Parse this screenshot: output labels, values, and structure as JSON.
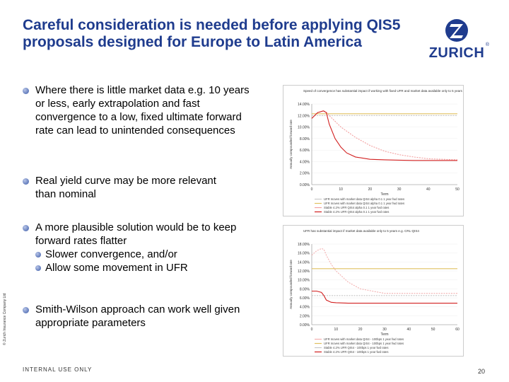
{
  "title": "Careful consideration is needed before applying QIS5 proposals designed for Europe to Latin America",
  "logo": {
    "word": "ZURICH",
    "reg": "®"
  },
  "bullets": [
    {
      "text": "Where there is little market data e.g. 10 years or less, early extrapolation and fast convergence to a low, fixed ultimate forward rate can lead to unintended consequences"
    },
    {
      "text": "Real yield curve may be more relevant than nominal"
    },
    {
      "text": "A more plausible solution would be to keep forward rates flatter",
      "subs": [
        "Slower convergence, and/or",
        "Allow some movement in UFR"
      ]
    },
    {
      "text": "Smith-Wilson approach can work well given appropriate parameters"
    }
  ],
  "side_copy": "© Zurich Insurance Company Ltd",
  "footer": "INTERNAL USE ONLY",
  "page_number": "20",
  "chart_data": [
    {
      "type": "line",
      "title": "Speed of convergence has substantial impact if working with fixed UFR and market data available only to 5 years e.g. QIS4-4(6)",
      "xlabel": "Term",
      "ylabel": "Annually compounded forward rate",
      "xlim": [
        0,
        50
      ],
      "ylim": [
        0,
        14
      ],
      "x_ticks": [
        "0",
        "10",
        "20",
        "30",
        "40",
        "50"
      ],
      "y_ticks": [
        "0.00%",
        "2.00%",
        "4.00%",
        "6.00%",
        "8.00%",
        "10.00%",
        "12.00%",
        "14.00%"
      ],
      "series": [
        {
          "name": "UFR moves with market data QIS4 alpha 0.1 1 year fwd rates",
          "color": "#c8c8c8",
          "x": [
            0,
            2,
            4,
            6,
            8,
            10,
            15,
            20,
            25,
            30,
            35,
            40,
            45,
            50
          ],
          "y": [
            12.0,
            12.0,
            12.0,
            12.0,
            12.0,
            12.0,
            12.0,
            12.0,
            12.0,
            12.0,
            12.0,
            12.0,
            12.0,
            12.0
          ]
        },
        {
          "name": "UFR moves with market data QIS4 alpha 0.1 1 year fwd rates",
          "color": "#e0c060",
          "x": [
            0,
            5,
            10,
            15,
            20,
            25,
            30,
            35,
            40,
            45,
            50
          ],
          "y": [
            12.3,
            12.3,
            12.3,
            12.3,
            12.3,
            12.3,
            12.3,
            12.3,
            12.3,
            12.3,
            12.3
          ]
        },
        {
          "name": "Stable 4.2% UFR QIS4 alpha 0.1 1 year fwd rates",
          "color": "#f3a0a0",
          "x": [
            0,
            2,
            4,
            5,
            6,
            8,
            10,
            15,
            20,
            25,
            30,
            35,
            40,
            45,
            50
          ],
          "y": [
            11.5,
            12.5,
            12.8,
            12.6,
            12.0,
            11.0,
            10.0,
            8.2,
            6.8,
            5.8,
            5.2,
            4.8,
            4.5,
            4.4,
            4.3
          ]
        },
        {
          "name": "Stable 4.2% UFR QIS4 alpha 0.1 1 year fwd rates",
          "color": "#d22020",
          "x": [
            0,
            2,
            4,
            5,
            6,
            8,
            10,
            12,
            15,
            20,
            25,
            30,
            35,
            40,
            45,
            50
          ],
          "y": [
            11.5,
            12.5,
            12.8,
            12.5,
            10.5,
            8.0,
            6.5,
            5.5,
            4.8,
            4.4,
            4.3,
            4.25,
            4.2,
            4.2,
            4.2,
            4.2
          ]
        }
      ]
    },
    {
      "type": "line",
      "title": "UFR has substantial impact if market data available only to 5 years e.g. CRL-QIS4",
      "xlabel": "Term",
      "ylabel": "Annually compounded forward rate",
      "xlim": [
        0,
        60
      ],
      "ylim": [
        0,
        18
      ],
      "x_ticks": [
        "0",
        "10",
        "20",
        "30",
        "40",
        "50",
        "60"
      ],
      "y_ticks": [
        "0.00%",
        "2.00%",
        "4.00%",
        "6.00%",
        "8.00%",
        "10.00%",
        "12.00%",
        "14.00%",
        "16.00%",
        "18.00%"
      ],
      "series": [
        {
          "name": "UFR moves with market data QIS4 - 100bps 1 year fwd rates",
          "color": "#f3b0b0",
          "x": [
            0,
            2,
            4,
            5,
            6,
            8,
            10,
            15,
            20,
            30,
            40,
            50,
            60
          ],
          "y": [
            15.5,
            16.5,
            17.0,
            16.8,
            15.5,
            13.5,
            12.0,
            9.5,
            8.0,
            7.0,
            7.0,
            7.0,
            7.0
          ]
        },
        {
          "name": "UFR moves with market data QIS4 - 100bps 1 year fwd rates",
          "color": "#e0c060",
          "x": [
            0,
            5,
            10,
            20,
            30,
            40,
            50,
            60
          ],
          "y": [
            12.5,
            12.5,
            12.5,
            12.5,
            12.5,
            12.5,
            12.5,
            12.5
          ]
        },
        {
          "name": "Stable 4.2% UFR QIS4 - 100bps 1 year fwd rates",
          "color": "#c8c8c8",
          "x": [
            0,
            5,
            10,
            20,
            30,
            40,
            50,
            60
          ],
          "y": [
            6.5,
            6.5,
            6.5,
            6.5,
            6.5,
            6.5,
            6.5,
            6.5
          ]
        },
        {
          "name": "Stable 4.2% UFR QIS4 - 100bps 1 year fwd rates",
          "color": "#d22020",
          "x": [
            0,
            2,
            4,
            5,
            6,
            8,
            10,
            15,
            20,
            30,
            40,
            50,
            60
          ],
          "y": [
            7.5,
            7.5,
            7.2,
            6.5,
            5.5,
            5.0,
            4.9,
            4.8,
            4.8,
            4.8,
            4.8,
            4.8,
            4.8
          ]
        }
      ]
    }
  ]
}
